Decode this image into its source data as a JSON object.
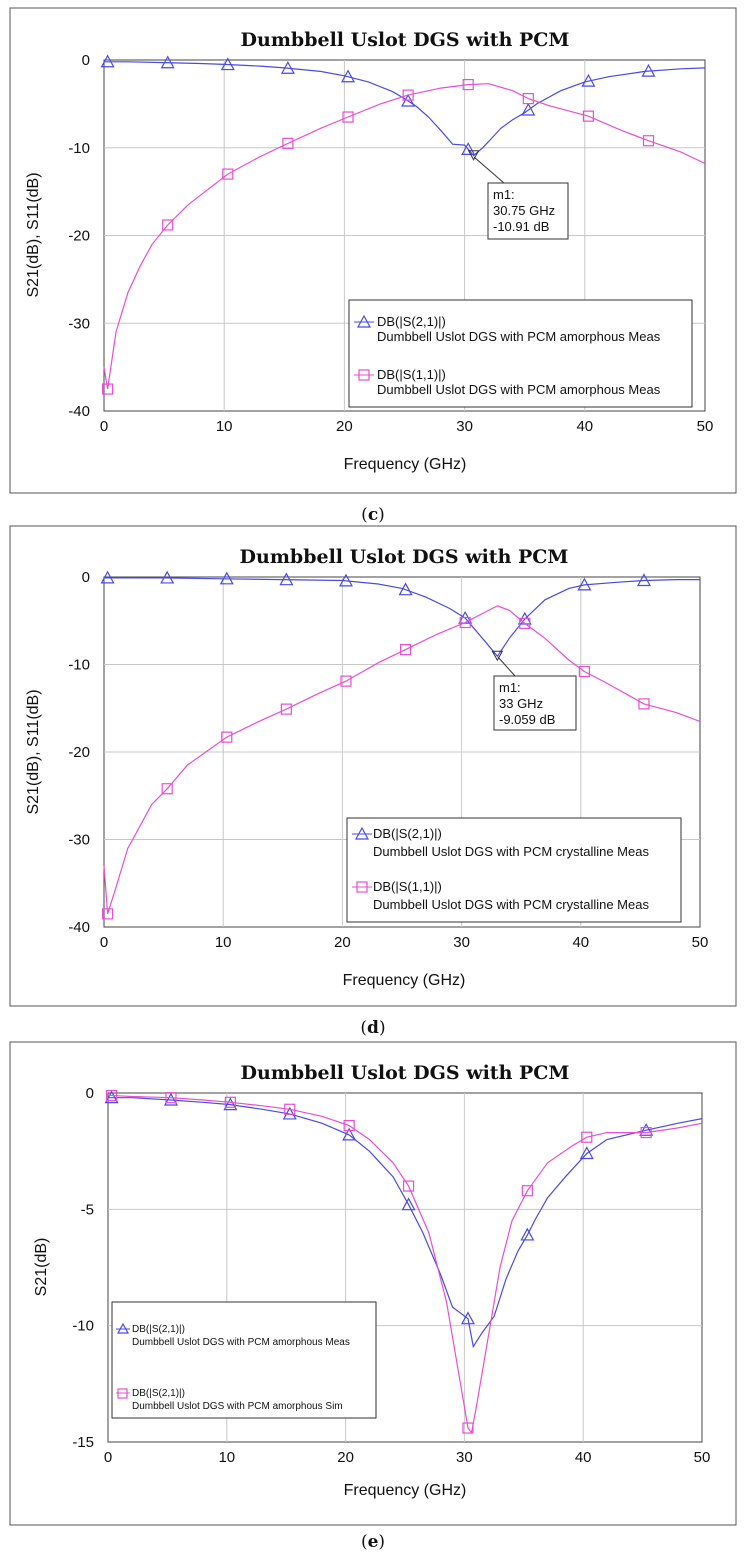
{
  "chart_data": [
    {
      "id": "c",
      "type": "line",
      "title": "Dumbbell Uslot DGS with PCM",
      "xlabel": "Frequency (GHz)",
      "ylabel": "S21(dB), S11(dB)",
      "xlim": [
        0,
        50
      ],
      "ylim": [
        -40,
        0
      ],
      "xticks": [
        0,
        10,
        20,
        30,
        40,
        50
      ],
      "yticks": [
        0,
        -10,
        -20,
        -30,
        -40
      ],
      "grid": true,
      "caption": "c",
      "series": [
        {
          "legend_line1": "DB(|S(2,1)|)",
          "legend_line2": "Dumbbell Uslot DGS with PCM amorphous Meas",
          "color": "#4a4ae6",
          "marker": "triangle",
          "x": [
            0,
            2,
            5,
            8,
            10,
            13,
            15,
            18,
            20,
            22,
            24,
            25,
            26,
            27,
            28,
            29,
            30,
            30.75,
            31.5,
            32,
            33,
            34,
            35,
            36,
            38,
            40,
            42,
            45,
            48,
            50
          ],
          "y": [
            -0.2,
            -0.2,
            -0.3,
            -0.4,
            -0.5,
            -0.7,
            -0.9,
            -1.3,
            -1.8,
            -2.5,
            -3.6,
            -4.4,
            -5.3,
            -6.5,
            -8.0,
            -9.6,
            -9.7,
            -10.91,
            -10.0,
            -9.3,
            -7.8,
            -6.8,
            -6.0,
            -5.0,
            -3.5,
            -2.5,
            -1.9,
            -1.3,
            -1.0,
            -0.9
          ],
          "marker_x": [
            0.3,
            5.3,
            10.3,
            15.3,
            20.3,
            25.3,
            30.3,
            35.3,
            40.3,
            45.3
          ]
        },
        {
          "legend_line1": "DB(|S(1,1)|)",
          "legend_line2": "Dumbbell Uslot DGS with PCM amorphous Meas",
          "color": "#e84fd2",
          "marker": "square",
          "x": [
            0,
            0.3,
            1,
            2,
            3,
            4,
            5.3,
            7,
            10.3,
            13,
            15.3,
            18,
            20.3,
            23,
            25.3,
            28,
            30.3,
            32,
            34,
            35.3,
            37,
            40.3,
            43,
            45.3,
            48,
            50
          ],
          "y": [
            -35,
            -37.5,
            -31,
            -26.5,
            -23.5,
            -21,
            -18.8,
            -16.5,
            -13,
            -11,
            -9.5,
            -7.8,
            -6.5,
            -5,
            -4,
            -3.2,
            -2.8,
            -2.7,
            -3.5,
            -4.4,
            -5.2,
            -6.4,
            -8,
            -9.2,
            -10.5,
            -11.8
          ],
          "marker_x": [
            0.3,
            5.3,
            10.3,
            15.3,
            20.3,
            25.3,
            30.3,
            35.3,
            40.3,
            45.3
          ]
        }
      ],
      "annotation": {
        "label": "m1:",
        "freq": "30.75 GHz",
        "value": "-10.91 dB",
        "x": 30.75,
        "y": -10.91
      }
    },
    {
      "id": "d",
      "type": "line",
      "title": "Dumbbell Uslot DGS with PCM",
      "xlabel": "Frequency (GHz)",
      "ylabel": "S21(dB), S11(dB)",
      "xlim": [
        0,
        50
      ],
      "ylim": [
        -40,
        0
      ],
      "xticks": [
        0,
        10,
        20,
        30,
        40,
        50
      ],
      "yticks": [
        0,
        -10,
        -20,
        -30,
        -40
      ],
      "grid": true,
      "caption": "d",
      "series": [
        {
          "legend_line1": "DB(|S(2,1)|)",
          "legend_line2": "Dumbbell Uslot DGS with PCM crystalline Meas",
          "color": "#4a4ae6",
          "marker": "triangle",
          "x": [
            0,
            5,
            10,
            15,
            20,
            23,
            25,
            27,
            29,
            30.3,
            31,
            32,
            33,
            34,
            35.3,
            37,
            39,
            40.3,
            43,
            45.3,
            48,
            50
          ],
          "y": [
            -0.1,
            -0.1,
            -0.2,
            -0.3,
            -0.4,
            -0.8,
            -1.3,
            -2.3,
            -3.6,
            -4.7,
            -5.8,
            -7.4,
            -9.06,
            -7.0,
            -4.8,
            -2.6,
            -1.3,
            -0.9,
            -0.6,
            -0.4,
            -0.3,
            -0.3
          ],
          "marker_x": [
            0.3,
            5.3,
            10.3,
            15.3,
            20.3,
            25.3,
            30.3,
            35.3,
            40.3,
            45.3
          ]
        },
        {
          "legend_line1": "DB(|S(1,1)|)",
          "legend_line2": "Dumbbell Uslot DGS with PCM crystalline Meas",
          "color": "#e84fd2",
          "marker": "square",
          "x": [
            0,
            0.3,
            1,
            2,
            3,
            4,
            5.3,
            7,
            10.3,
            13,
            15.3,
            18,
            20.3,
            23,
            25.3,
            28,
            30.3,
            32,
            33,
            34,
            35.3,
            37,
            39,
            40.3,
            42,
            45.3,
            48,
            50
          ],
          "y": [
            -33,
            -38.5,
            -35.5,
            -31,
            -28.5,
            -26,
            -24.2,
            -21.5,
            -18.3,
            -16.5,
            -15.1,
            -13.3,
            -11.9,
            -9.8,
            -8.3,
            -6.5,
            -5.2,
            -4.0,
            -3.3,
            -3.8,
            -5.3,
            -7.0,
            -9.5,
            -10.8,
            -12,
            -14.5,
            -15.5,
            -16.5
          ],
          "marker_x": [
            0.3,
            5.3,
            10.3,
            15.3,
            20.3,
            25.3,
            30.3,
            35.3,
            40.3,
            45.3
          ]
        }
      ],
      "annotation": {
        "label": "m1:",
        "freq": "33 GHz",
        "value": "-9.059 dB",
        "x": 33,
        "y": -9.059
      }
    },
    {
      "id": "e",
      "type": "line",
      "title": "Dumbbell Uslot DGS with PCM",
      "xlabel": "Frequency (GHz)",
      "ylabel": "S21(dB)",
      "xlim": [
        0,
        50
      ],
      "ylim": [
        -15,
        0
      ],
      "xticks": [
        0,
        10,
        20,
        30,
        40,
        50
      ],
      "yticks": [
        0,
        -5,
        -10,
        -15
      ],
      "grid": true,
      "caption": "e",
      "series": [
        {
          "legend_line1": "DB(|S(2,1)|)",
          "legend_line2": "Dumbbell Uslot DGS with PCM amorphous Meas",
          "color": "#4a4ae6",
          "marker": "triangle",
          "x": [
            0,
            2,
            5.3,
            8,
            10.3,
            13,
            15.3,
            18,
            20.3,
            22,
            24,
            25.3,
            26.5,
            28,
            29,
            30.3,
            30.75,
            31.5,
            32.5,
            33.5,
            34.5,
            35.3,
            36,
            37,
            38.5,
            40.3,
            42,
            45.3,
            48,
            50
          ],
          "y": [
            -0.2,
            -0.2,
            -0.3,
            -0.4,
            -0.5,
            -0.7,
            -0.9,
            -1.3,
            -1.8,
            -2.5,
            -3.6,
            -4.8,
            -6.0,
            -7.8,
            -9.2,
            -9.7,
            -10.9,
            -10.3,
            -9.6,
            -8.0,
            -6.8,
            -6.1,
            -5.4,
            -4.5,
            -3.6,
            -2.6,
            -2.0,
            -1.6,
            -1.3,
            -1.1
          ],
          "marker_x": [
            0.3,
            5.3,
            10.3,
            15.3,
            20.3,
            25.3,
            30.3,
            35.3,
            40.3,
            45.3
          ]
        },
        {
          "legend_line1": "DB(|S(2,1)|)",
          "legend_line2": "Dumbbell Uslot DGS with PCM amorphous Sim",
          "color": "#e84fd2",
          "marker": "square",
          "x": [
            0,
            2,
            5.3,
            8,
            10.3,
            13,
            15.3,
            18,
            20.3,
            22,
            24,
            25.3,
            27,
            28.5,
            29.5,
            30.3,
            30.6,
            31,
            32,
            33,
            34,
            35.3,
            37,
            39,
            40.3,
            42,
            45.3,
            48,
            50
          ],
          "y": [
            -0.1,
            -0.15,
            -0.2,
            -0.3,
            -0.4,
            -0.55,
            -0.7,
            -1.0,
            -1.4,
            -2.0,
            -3.0,
            -4.0,
            -6.0,
            -9.0,
            -12.0,
            -14.4,
            -14.6,
            -13.5,
            -10.5,
            -7.5,
            -5.5,
            -4.2,
            -3.0,
            -2.3,
            -1.9,
            -1.7,
            -1.7,
            -1.5,
            -1.3
          ],
          "marker_x": [
            0.3,
            5.3,
            10.3,
            15.3,
            20.3,
            25.3,
            30.3,
            35.3,
            40.3,
            45.3
          ]
        }
      ]
    }
  ]
}
